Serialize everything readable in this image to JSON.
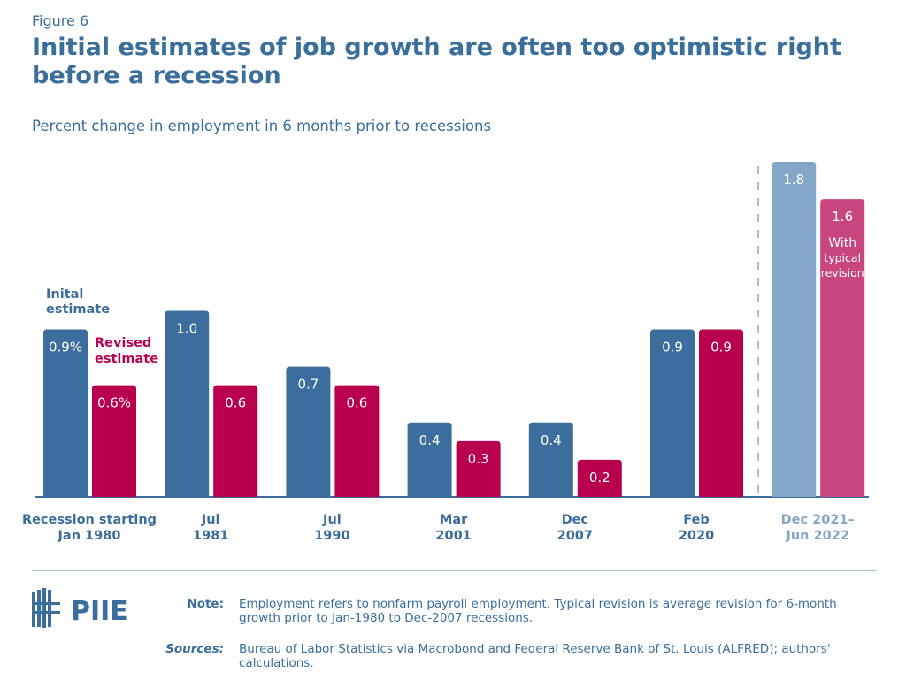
{
  "figure_label": "Figure 6",
  "title": "Initial estimates of job growth are often too optimistic right before a recession",
  "chart_data": {
    "type": "bar",
    "subtitle": "Percent change in employment in 6 months prior to recessions",
    "categories": [
      [
        "Recession starting",
        "Jan 1980"
      ],
      [
        "Jul",
        "1981"
      ],
      [
        "Jul",
        "1990"
      ],
      [
        "Mar",
        "2001"
      ],
      [
        "Dec",
        "2007"
      ],
      [
        "Feb",
        "2020"
      ],
      [
        "Dec 2021–",
        "Jun 2022"
      ]
    ],
    "series": [
      {
        "name": "Inital estimate",
        "values": [
          0.9,
          1.0,
          0.7,
          0.4,
          0.4,
          0.9,
          1.8
        ],
        "labels": [
          "0.9%",
          "1.0",
          "0.7",
          "0.4",
          "0.4",
          "0.9",
          "1.8"
        ]
      },
      {
        "name": "Revised estimate",
        "values": [
          0.6,
          0.6,
          0.6,
          0.3,
          0.2,
          0.9,
          1.6
        ],
        "labels": [
          "0.6%",
          "0.6",
          "0.6",
          "0.3",
          "0.2",
          "0.9",
          "1.6"
        ]
      }
    ],
    "annotation_last": [
      "With",
      "typical",
      "revision"
    ],
    "colors": {
      "initial": "#3b6e9c",
      "revised": "#b8004e",
      "initial_projected": "#84a7c8",
      "revised_projected": "#c9457f"
    },
    "ylim": [
      0,
      1.8
    ]
  },
  "logo": "PIIE",
  "note_label": "Note:",
  "note": "Employment refers to nonfarm payroll employment. Typical revision is average revision for 6-month growth prior to Jan-1980 to Dec-2007 recessions.",
  "sources_label": "Sources:",
  "sources": "Bureau of Labor Statistics via Macrobond and Federal Reserve Bank of St. Louis (ALFRED); authors' calculations."
}
